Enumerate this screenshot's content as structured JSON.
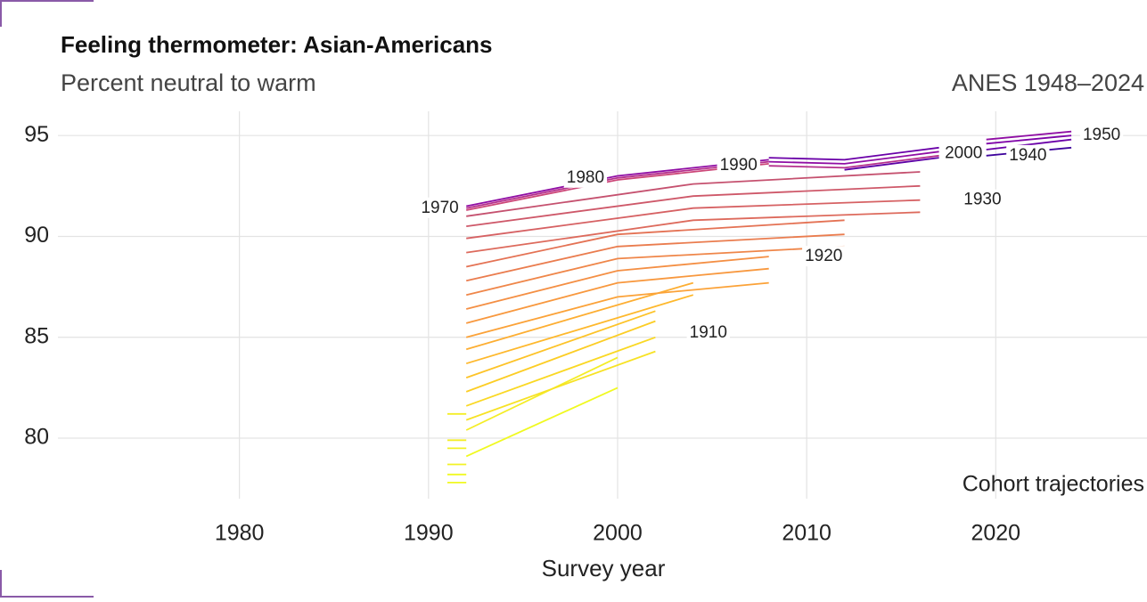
{
  "chart_data": {
    "type": "line",
    "title": "Feeling thermometer: Asian-Americans",
    "subtitle": "Percent neutral to warm",
    "source": "ANES 1948–2024",
    "caption": "Cohort trajectories",
    "x_label": "Survey year",
    "xlim": [
      1970.4,
      2028
    ],
    "xticks": [
      1980,
      1990,
      2000,
      2010,
      2020
    ],
    "ylim": [
      77,
      96.2
    ],
    "yticks": [
      80,
      85,
      90,
      95
    ],
    "grid": true,
    "series": [
      {
        "color": "#f0f921",
        "x": [
          1991,
          1992
        ],
        "values": [
          77.8,
          77.8
        ]
      },
      {
        "color": "#f0f921",
        "x": [
          1991,
          1992
        ],
        "values": [
          78.2,
          78.2
        ]
      },
      {
        "color": "#f2f224",
        "x": [
          1991,
          1992
        ],
        "values": [
          78.7,
          78.7
        ]
      },
      {
        "color": "#f2f224",
        "x": [
          1991,
          1992
        ],
        "values": [
          79.5,
          79.5
        ]
      },
      {
        "color": "#f4ed27",
        "x": [
          1991,
          1992
        ],
        "values": [
          79.9,
          79.9
        ]
      },
      {
        "color": "#f4ed27",
        "x": [
          1991,
          1992
        ],
        "values": [
          81.2,
          81.2
        ]
      },
      {
        "color": "#f0f921",
        "x": [
          1992,
          2000
        ],
        "values": [
          79.1,
          82.5
        ]
      },
      {
        "color": "#f4ed27",
        "x": [
          1992,
          2000
        ],
        "values": [
          80.4,
          84.0
        ]
      },
      {
        "color": "#f7e225",
        "x": [
          1992,
          2002
        ],
        "values": [
          80.9,
          84.3
        ]
      },
      {
        "color": "#fad824",
        "x": [
          1992,
          2002
        ],
        "values": [
          81.6,
          85.0
        ]
      },
      {
        "color": "#fccd25",
        "x": [
          1992,
          2002
        ],
        "values": [
          82.3,
          85.8
        ]
      },
      {
        "color": "#fdc328",
        "x": [
          1992,
          2002
        ],
        "values": [
          83.0,
          86.3
        ]
      },
      {
        "color": "#feb82c",
        "x": [
          1992,
          2004
        ],
        "values": [
          83.7,
          87.1
        ]
      },
      {
        "color": "#fdae32",
        "x": [
          1992,
          2004
        ],
        "values": [
          84.4,
          87.7
        ]
      },
      {
        "color": "#fba238",
        "x": [
          1992,
          2000,
          2008
        ],
        "values": [
          85.0,
          87.0,
          87.7
        ]
      },
      {
        "color": "#f8983e",
        "x": [
          1992,
          2000,
          2008
        ],
        "values": [
          85.7,
          87.7,
          88.4
        ]
      },
      {
        "color": "#f48f44",
        "x": [
          1992,
          2000,
          2008
        ],
        "values": [
          86.4,
          88.3,
          89.0
        ]
      },
      {
        "color": "#ef8649",
        "x": [
          1992,
          2000,
          2012
        ],
        "values": [
          87.1,
          88.9,
          89.5
        ]
      },
      {
        "color": "#ea7c4e",
        "x": [
          1992,
          2000,
          2012
        ],
        "values": [
          87.8,
          89.5,
          90.1
        ]
      },
      {
        "color": "#e47254",
        "x": [
          1992,
          2000,
          2012
        ],
        "values": [
          88.5,
          90.1,
          90.8
        ]
      },
      {
        "color": "#dd6a5c",
        "x": [
          1992,
          2004,
          2016
        ],
        "values": [
          89.2,
          90.8,
          91.2
        ]
      },
      {
        "color": "#d66163",
        "x": [
          1992,
          2004,
          2016
        ],
        "values": [
          89.9,
          91.4,
          91.8
        ]
      },
      {
        "color": "#ce5869",
        "x": [
          1992,
          2004,
          2016
        ],
        "values": [
          90.5,
          92.0,
          92.5
        ]
      },
      {
        "color": "#c5516f",
        "x": [
          1992,
          2004,
          2016
        ],
        "values": [
          91.0,
          92.6,
          93.2
        ]
      },
      {
        "color": "#cc4778",
        "x": [
          1992,
          2000,
          2008
        ],
        "values": [
          91.3,
          92.8,
          93.6
        ]
      },
      {
        "color": "#b52f8c",
        "x": [
          1992,
          2000,
          2008
        ],
        "values": [
          91.4,
          92.9,
          93.7
        ]
      },
      {
        "color": "#8f0da4",
        "x": [
          1992,
          2000,
          2008
        ],
        "values": [
          91.5,
          93.0,
          93.8
        ]
      },
      {
        "color": "#b52f8c",
        "x": [
          2008,
          2012,
          2017
        ],
        "values": [
          93.5,
          93.4,
          94.0
        ]
      },
      {
        "color": "#8f0da4",
        "x": [
          2008,
          2012,
          2017
        ],
        "values": [
          93.7,
          93.6,
          94.2
        ]
      },
      {
        "color": "#6a00a8",
        "x": [
          2008,
          2012,
          2017
        ],
        "values": [
          93.9,
          93.8,
          94.4
        ]
      },
      {
        "color": "#5c01a6",
        "x": [
          2012,
          2017
        ],
        "values": [
          93.3,
          93.9
        ]
      },
      {
        "color": "#3e049c",
        "x": [
          2019.5,
          2024
        ],
        "values": [
          94.0,
          94.4
        ]
      },
      {
        "color": "#6a00a8",
        "x": [
          2019.5,
          2024
        ],
        "values": [
          94.3,
          94.8
        ]
      },
      {
        "color": "#7e03a8",
        "x": [
          2019.5,
          2024
        ],
        "values": [
          94.6,
          95.0
        ]
      },
      {
        "color": "#8f0da4",
        "x": [
          2019.5,
          2024
        ],
        "values": [
          94.8,
          95.2
        ]
      }
    ],
    "annotations": [
      {
        "text": "1970",
        "x": 1991.6,
        "y": 91.4
      },
      {
        "text": "1980",
        "x": 1998.3,
        "y": 92.9
      },
      {
        "text": "1990",
        "x": 2006.4,
        "y": 93.5
      },
      {
        "text": "2000",
        "x": 2018.3,
        "y": 94.1
      },
      {
        "text": "1940",
        "x": 2021.7,
        "y": 94.0
      },
      {
        "text": "1950",
        "x": 2025.6,
        "y": 95.0
      },
      {
        "text": "1930",
        "x": 2019.3,
        "y": 91.8
      },
      {
        "text": "1920",
        "x": 2010.9,
        "y": 89.0
      },
      {
        "text": "1910",
        "x": 2004.8,
        "y": 85.2
      }
    ]
  }
}
